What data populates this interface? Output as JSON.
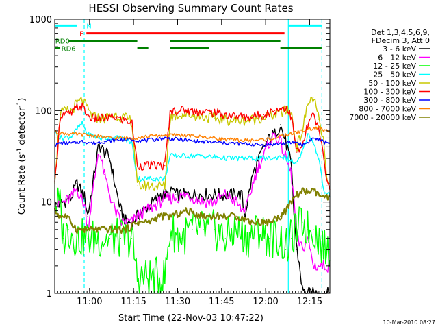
{
  "chart_data": {
    "type": "line",
    "title": "HESSI Observing Summary Count Rates",
    "xlabel": "Start Time (22-Nov-03 10:47:22)",
    "ylabel_main": "Count Rate (s",
    "ylabel_sup1": "-1",
    "ylabel_mid": " detector",
    "ylabel_sup2": "-1",
    "ylabel_end": ")",
    "yscale": "log",
    "xlim": [
      0.0,
      100.0
    ],
    "ylim": [
      1,
      1000
    ],
    "x_ticks": [
      {
        "x": 12.64,
        "label": "11:00"
      },
      {
        "x": 28.64,
        "label": "11:15"
      },
      {
        "x": 44.64,
        "label": "11:30"
      },
      {
        "x": 60.64,
        "label": "11:45"
      },
      {
        "x": 76.64,
        "label": "12:00"
      },
      {
        "x": 92.64,
        "label": "12:15"
      }
    ],
    "y_ticks": [
      {
        "y": 1,
        "label": "1"
      },
      {
        "y": 10,
        "label": "10"
      },
      {
        "y": 100,
        "label": "100"
      },
      {
        "y": 1000,
        "label": "1000"
      }
    ],
    "legend_header": [
      "Det 1,3,4,5,6,9,",
      "FDecim 3, Att 0"
    ],
    "series": [
      {
        "name": "3 - 6 keV",
        "color": "#000000",
        "points": [
          [
            0,
            9
          ],
          [
            6,
            11
          ],
          [
            8,
            16
          ],
          [
            11,
            11
          ],
          [
            12,
            7
          ],
          [
            16,
            42
          ],
          [
            20,
            30
          ],
          [
            22,
            15
          ],
          [
            24,
            8
          ],
          [
            26,
            6
          ],
          [
            28,
            6
          ],
          [
            30,
            7
          ],
          [
            32,
            8
          ],
          [
            36,
            10
          ],
          [
            38,
            12
          ],
          [
            40,
            12
          ],
          [
            42,
            12
          ],
          [
            43,
            14
          ],
          [
            44,
            12
          ],
          [
            46,
            12
          ],
          [
            52,
            12
          ],
          [
            58,
            12
          ],
          [
            64,
            12
          ],
          [
            68,
            12
          ],
          [
            69,
            7
          ],
          [
            70,
            10
          ],
          [
            72,
            20
          ],
          [
            74,
            28
          ],
          [
            76,
            40
          ],
          [
            78,
            50
          ],
          [
            80,
            55
          ],
          [
            82,
            70
          ],
          [
            84,
            45
          ],
          [
            86,
            25
          ],
          [
            87,
            7
          ],
          [
            88,
            3
          ],
          [
            89,
            2
          ],
          [
            90,
            1.1
          ],
          [
            91,
            1
          ],
          [
            92,
            1
          ]
        ]
      },
      {
        "name": "6 - 12 keV",
        "color": "#ff00ff",
        "points": [
          [
            0,
            9
          ],
          [
            6,
            11
          ],
          [
            8,
            14
          ],
          [
            11,
            9
          ],
          [
            12,
            5
          ],
          [
            16,
            38
          ],
          [
            18,
            20
          ],
          [
            20,
            12
          ],
          [
            22,
            8
          ],
          [
            24,
            6
          ],
          [
            26,
            6
          ],
          [
            28,
            6
          ],
          [
            30,
            7
          ],
          [
            36,
            9
          ],
          [
            40,
            11
          ],
          [
            44,
            11
          ],
          [
            48,
            12
          ],
          [
            54,
            10
          ],
          [
            58,
            10
          ],
          [
            62,
            12
          ],
          [
            66,
            10
          ],
          [
            68,
            8
          ],
          [
            70,
            9
          ],
          [
            72,
            16
          ],
          [
            74,
            25
          ],
          [
            76,
            32
          ],
          [
            78,
            45
          ],
          [
            80,
            55
          ],
          [
            82,
            45
          ],
          [
            84,
            30
          ],
          [
            86,
            20
          ],
          [
            87,
            10
          ],
          [
            88,
            4
          ],
          [
            90,
            3
          ],
          [
            92,
            4
          ],
          [
            94,
            2
          ]
        ]
      },
      {
        "name": "12 - 25 keV",
        "color": "#00ff00",
        "points": [
          [
            0,
            10
          ],
          [
            2,
            9
          ],
          [
            3,
            4
          ],
          [
            5,
            5
          ],
          [
            8,
            4
          ],
          [
            12,
            4
          ],
          [
            16,
            4
          ],
          [
            20,
            4
          ],
          [
            24,
            4
          ],
          [
            28,
            4
          ],
          [
            30,
            1.5
          ],
          [
            32,
            1.5
          ],
          [
            36,
            1.5
          ],
          [
            40,
            1.5
          ],
          [
            42,
            5
          ],
          [
            46,
            4
          ],
          [
            50,
            5
          ],
          [
            54,
            5
          ],
          [
            58,
            5
          ],
          [
            62,
            4
          ],
          [
            66,
            5
          ],
          [
            70,
            4
          ],
          [
            74,
            5
          ],
          [
            78,
            4
          ],
          [
            82,
            4
          ],
          [
            84,
            3
          ],
          [
            86,
            4
          ],
          [
            88,
            5
          ],
          [
            90,
            6
          ],
          [
            92,
            5
          ],
          [
            94,
            5
          ],
          [
            96,
            4
          ],
          [
            98,
            3
          ]
        ]
      },
      {
        "name": "25 - 50 keV",
        "color": "#00ffff",
        "points": [
          [
            0,
            58
          ],
          [
            2,
            50
          ],
          [
            6,
            52
          ],
          [
            8,
            62
          ],
          [
            10,
            72
          ],
          [
            12,
            55
          ],
          [
            16,
            50
          ],
          [
            20,
            50
          ],
          [
            24,
            50
          ],
          [
            28,
            45
          ],
          [
            30,
            18
          ],
          [
            36,
            18
          ],
          [
            40,
            18
          ],
          [
            42,
            32
          ],
          [
            48,
            32
          ],
          [
            52,
            32
          ],
          [
            58,
            31
          ],
          [
            64,
            30
          ],
          [
            70,
            30
          ],
          [
            76,
            30
          ],
          [
            80,
            30
          ],
          [
            82,
            32
          ],
          [
            84,
            30
          ],
          [
            86,
            28
          ],
          [
            88,
            26
          ],
          [
            90,
            35
          ],
          [
            92,
            55
          ],
          [
            94,
            45
          ],
          [
            96,
            30
          ],
          [
            98,
            12
          ]
        ]
      },
      {
        "name": "50 - 100 keV",
        "color": "#c8c800",
        "points": [
          [
            0,
            18
          ],
          [
            2,
            95
          ],
          [
            6,
            100
          ],
          [
            8,
            118
          ],
          [
            10,
            130
          ],
          [
            12,
            102
          ],
          [
            14,
            85
          ],
          [
            18,
            82
          ],
          [
            22,
            90
          ],
          [
            24,
            85
          ],
          [
            28,
            78
          ],
          [
            30,
            15
          ],
          [
            40,
            15
          ],
          [
            42,
            85
          ],
          [
            46,
            92
          ],
          [
            52,
            88
          ],
          [
            58,
            82
          ],
          [
            64,
            78
          ],
          [
            70,
            78
          ],
          [
            76,
            85
          ],
          [
            80,
            90
          ],
          [
            84,
            100
          ],
          [
            86,
            95
          ],
          [
            88,
            40
          ],
          [
            90,
            60
          ],
          [
            92,
            120
          ],
          [
            94,
            140
          ],
          [
            96,
            80
          ],
          [
            98,
            40
          ],
          [
            99,
            15
          ]
        ]
      },
      {
        "name": "100 - 300 keV",
        "color": "#ff0000",
        "points": [
          [
            0,
            15
          ],
          [
            2,
            90
          ],
          [
            6,
            92
          ],
          [
            8,
            108
          ],
          [
            10,
            110
          ],
          [
            12,
            88
          ],
          [
            14,
            82
          ],
          [
            18,
            82
          ],
          [
            22,
            85
          ],
          [
            24,
            80
          ],
          [
            28,
            75
          ],
          [
            30,
            25
          ],
          [
            40,
            25
          ],
          [
            42,
            98
          ],
          [
            46,
            102
          ],
          [
            52,
            98
          ],
          [
            58,
            95
          ],
          [
            64,
            88
          ],
          [
            70,
            85
          ],
          [
            76,
            90
          ],
          [
            80,
            100
          ],
          [
            84,
            110
          ],
          [
            86,
            85
          ],
          [
            88,
            35
          ],
          [
            90,
            40
          ],
          [
            92,
            70
          ],
          [
            94,
            90
          ],
          [
            96,
            60
          ],
          [
            98,
            30
          ],
          [
            99,
            15
          ]
        ]
      },
      {
        "name": "300 - 800 keV",
        "color": "#0000ff",
        "points": [
          [
            0,
            42
          ],
          [
            2,
            44
          ],
          [
            6,
            44
          ],
          [
            10,
            46
          ],
          [
            14,
            44
          ],
          [
            18,
            46
          ],
          [
            24,
            48
          ],
          [
            28,
            48
          ],
          [
            32,
            47
          ],
          [
            36,
            48
          ],
          [
            40,
            50
          ],
          [
            46,
            48
          ],
          [
            52,
            46
          ],
          [
            58,
            45
          ],
          [
            64,
            44
          ],
          [
            70,
            43
          ],
          [
            76,
            42
          ],
          [
            80,
            43
          ],
          [
            84,
            44
          ],
          [
            88,
            45
          ],
          [
            90,
            42
          ],
          [
            92,
            45
          ],
          [
            94,
            50
          ],
          [
            96,
            48
          ],
          [
            98,
            45
          ]
        ]
      },
      {
        "name": "800 - 7000 keV",
        "color": "#ff8000",
        "points": [
          [
            0,
            58
          ],
          [
            4,
            56
          ],
          [
            8,
            55
          ],
          [
            12,
            54
          ],
          [
            16,
            52
          ],
          [
            20,
            50
          ],
          [
            24,
            50
          ],
          [
            28,
            50
          ],
          [
            34,
            52
          ],
          [
            40,
            54
          ],
          [
            46,
            54
          ],
          [
            52,
            52
          ],
          [
            58,
            50
          ],
          [
            64,
            48
          ],
          [
            70,
            47
          ],
          [
            76,
            48
          ],
          [
            80,
            50
          ],
          [
            84,
            54
          ],
          [
            88,
            58
          ],
          [
            92,
            62
          ],
          [
            96,
            65
          ],
          [
            98,
            60
          ]
        ]
      },
      {
        "name": "7000 - 20000 keV",
        "color": "#808000",
        "points": [
          [
            0,
            8
          ],
          [
            2,
            7
          ],
          [
            4,
            7
          ],
          [
            6,
            6
          ],
          [
            8,
            5
          ],
          [
            10,
            5
          ],
          [
            16,
            5
          ],
          [
            22,
            5
          ],
          [
            26,
            5
          ],
          [
            30,
            6
          ],
          [
            34,
            6
          ],
          [
            38,
            7
          ],
          [
            42,
            7
          ],
          [
            48,
            8
          ],
          [
            54,
            7
          ],
          [
            60,
            7
          ],
          [
            66,
            7
          ],
          [
            72,
            6
          ],
          [
            78,
            6
          ],
          [
            82,
            7
          ],
          [
            84,
            8
          ],
          [
            86,
            10
          ],
          [
            88,
            12
          ],
          [
            90,
            13
          ],
          [
            92,
            13
          ],
          [
            94,
            13
          ],
          [
            96,
            12
          ],
          [
            98,
            11
          ]
        ]
      }
    ],
    "annotations": [
      {
        "name": "N",
        "color": "#00ffff",
        "y": 850,
        "segments": [
          [
            0,
            8
          ],
          [
            85,
            97
          ]
        ],
        "label_x": 11.5
      },
      {
        "name": "F",
        "color": "#ff0000",
        "y": 700,
        "segments": [
          [
            11.5,
            83.5
          ]
        ],
        "label_x": 9.0
      },
      {
        "name": "RD0",
        "color": "#008000",
        "y": 580,
        "segments": [
          [
            5,
            30
          ],
          [
            42,
            82
          ]
        ],
        "label_x": 0.2
      },
      {
        "name": "RD6",
        "color": "#008000",
        "y": 480,
        "segments": [
          [
            0,
            2
          ],
          [
            30,
            34
          ],
          [
            42,
            56
          ],
          [
            82,
            97
          ]
        ],
        "label_x": 2.4
      }
    ],
    "vlines": [
      {
        "x": 10.7,
        "color": "#00ffff",
        "dashed": true
      },
      {
        "x": 84.9,
        "color": "#00ffff",
        "dashed": false
      },
      {
        "x": 97.1,
        "color": "#00ffff",
        "dashed": true
      }
    ],
    "footer_stamp": "10-Mar-2010 08:27"
  }
}
